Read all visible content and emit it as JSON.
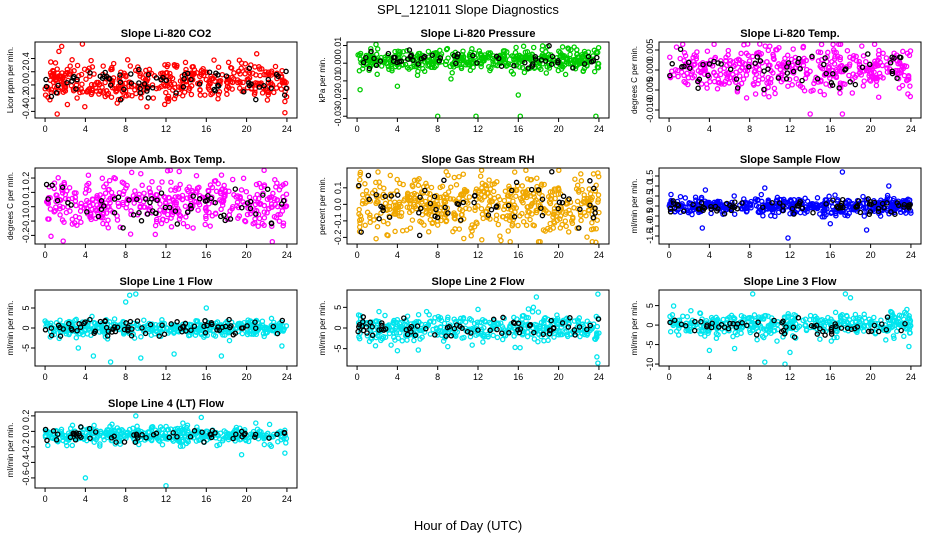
{
  "figure": {
    "title": "SPL_121011  Slope Diagnostics",
    "xlabel": "Hour of Day (UTC)"
  },
  "colors": {
    "red": "#ff0000",
    "green": "#00cc00",
    "magenta": "#ff00ff",
    "orange": "#f0a800",
    "blue": "#0000ff",
    "cyan": "#00e5ee",
    "reference": "#000000"
  },
  "chart_data": [
    {
      "type": "scatter",
      "title": "Slope Li-820 CO2",
      "xlabel": "",
      "ylabel": "Licor ppm per min.",
      "xlim": [
        -1,
        25
      ],
      "ylim": [
        -0.5,
        0.65
      ],
      "xticks": [
        0,
        4,
        8,
        12,
        16,
        20,
        24
      ],
      "yticks": [
        "-0.4",
        "-0.2",
        "0.0",
        "0.2",
        "0.4"
      ],
      "ytick_values": [
        -0.4,
        -0.2,
        0.0,
        0.2,
        0.4
      ],
      "color_key": "red",
      "center": 0.05,
      "spread": 0.15,
      "outliers": [
        [
          3.7,
          0.62
        ],
        [
          1.2,
          -0.44
        ],
        [
          23.8,
          -0.42
        ],
        [
          8.2,
          0.38
        ]
      ],
      "n_points": 420,
      "n_ref": 70,
      "seed": 11
    },
    {
      "type": "scatter",
      "title": "Slope Li-820 Pressure",
      "xlabel": "",
      "ylabel": "kPa per min.",
      "xlim": [
        -1,
        25
      ],
      "ylim": [
        -0.031,
        0.012
      ],
      "xticks": [
        0,
        4,
        8,
        12,
        16,
        20,
        24
      ],
      "yticks": [
        "-0.03",
        "-0.02",
        "-0.01",
        "0.00",
        "0.01"
      ],
      "ytick_values": [
        -0.03,
        -0.02,
        -0.01,
        0.0,
        0.01
      ],
      "color_key": "green",
      "center": 0.002,
      "spread": 0.003,
      "outliers": [
        [
          0.3,
          -0.015
        ],
        [
          4.0,
          -0.013
        ],
        [
          8.0,
          -0.03
        ],
        [
          11.8,
          -0.03
        ],
        [
          16.0,
          -0.018
        ],
        [
          16.2,
          -0.03
        ],
        [
          23.7,
          -0.03
        ],
        [
          21.0,
          0.008
        ],
        [
          19.0,
          0.005
        ]
      ],
      "n_points": 460,
      "n_ref": 55,
      "seed": 23
    },
    {
      "type": "scatter",
      "title": "Slope Li-820 Temp.",
      "xlabel": "",
      "ylabel": "degrees C per min.",
      "xlim": [
        -1,
        25
      ],
      "ylim": [
        -0.012,
        0.007
      ],
      "xticks": [
        0,
        4,
        8,
        12,
        16,
        20,
        24
      ],
      "yticks": [
        "-0.010",
        "-0.005",
        "0.000",
        "0.005"
      ],
      "ytick_values": [
        -0.01,
        -0.005,
        0.0,
        0.005
      ],
      "color_key": "magenta",
      "center": 0.0,
      "spread": 0.0028,
      "outliers": [
        [
          7.8,
          0.0065
        ],
        [
          9.0,
          0.0065
        ],
        [
          14.0,
          -0.011
        ],
        [
          23.7,
          -0.006
        ],
        [
          17.2,
          -0.011
        ]
      ],
      "n_points": 420,
      "n_ref": 60,
      "seed": 37
    },
    {
      "type": "scatter",
      "title": "Slope Amb. Box Temp.",
      "xlabel": "",
      "ylabel": "degrees C per min.",
      "xlim": [
        -1,
        25
      ],
      "ylim": [
        -0.26,
        0.27
      ],
      "xticks": [
        0,
        4,
        8,
        12,
        16,
        20,
        24
      ],
      "yticks": [
        "-0.2",
        "-0.1",
        "0.0",
        "0.1",
        "0.2"
      ],
      "ytick_values": [
        -0.2,
        -0.1,
        0.0,
        0.1,
        0.2
      ],
      "color_key": "magenta",
      "center": 0.02,
      "spread": 0.09,
      "outliers": [
        [
          1.8,
          -0.24
        ],
        [
          9.5,
          0.23
        ],
        [
          4.3,
          0.22
        ]
      ],
      "n_points": 420,
      "n_ref": 60,
      "seed": 41
    },
    {
      "type": "scatter",
      "title": "Slope Gas Stream RH",
      "xlabel": "",
      "ylabel": "percent per min.",
      "xlim": [
        -1,
        25
      ],
      "ylim": [
        -0.24,
        0.22
      ],
      "xticks": [
        0,
        4,
        8,
        12,
        16,
        20,
        24
      ],
      "yticks": [
        "-0.2",
        "-0.1",
        "0.0",
        "0.1"
      ],
      "ytick_values": [
        -0.2,
        -0.1,
        0.0,
        0.1
      ],
      "color_key": "orange",
      "center": 0.0,
      "spread": 0.09,
      "outliers": [
        [
          23.7,
          -0.23
        ],
        [
          23.9,
          0.19
        ],
        [
          0.3,
          0.18
        ]
      ],
      "n_points": 520,
      "n_ref": 60,
      "seed": 53
    },
    {
      "type": "scatter",
      "title": "Slope Sample Flow",
      "xlabel": "",
      "ylabel": "ml/min per min.",
      "xlim": [
        -1,
        25
      ],
      "ylim": [
        -1.9,
        1.9
      ],
      "xticks": [
        0,
        4,
        8,
        12,
        16,
        20,
        24
      ],
      "yticks": [
        "-1.5",
        "-1.0",
        "-0.5",
        "0.0",
        "0.5",
        "1.0",
        "1.5"
      ],
      "ytick_values": [
        -1.5,
        -1.0,
        -0.5,
        0.0,
        0.5,
        1.0,
        1.5
      ],
      "color_key": "blue",
      "center": 0.0,
      "spread": 0.22,
      "outliers": [
        [
          11.8,
          -1.6
        ],
        [
          17.2,
          1.7
        ],
        [
          3.3,
          -1.1
        ],
        [
          19.6,
          -1.2
        ],
        [
          9.5,
          0.9
        ],
        [
          21.8,
          1.0
        ],
        [
          3.6,
          0.8
        ]
      ],
      "n_points": 460,
      "n_ref": 80,
      "seed": 61
    },
    {
      "type": "scatter",
      "title": "Slope Line 1 Flow",
      "xlabel": "",
      "ylabel": "ml/min per min.",
      "xlim": [
        -1,
        25
      ],
      "ylim": [
        -9.5,
        9.5
      ],
      "xticks": [
        0,
        4,
        8,
        12,
        16,
        20,
        24
      ],
      "yticks": [
        "-5",
        "0",
        "5"
      ],
      "ytick_values": [
        -5,
        0,
        5
      ],
      "color_key": "cyan",
      "center": 0.0,
      "spread": 1.0,
      "outliers": [
        [
          8.4,
          8.2
        ],
        [
          9.0,
          8.5
        ],
        [
          3.3,
          -5.0
        ],
        [
          4.8,
          -7.0
        ],
        [
          6.5,
          -8.5
        ],
        [
          9.5,
          -7.5
        ],
        [
          12.8,
          -6.5
        ],
        [
          17.5,
          -7.0
        ],
        [
          23.5,
          -4.5
        ],
        [
          8.0,
          6.5
        ],
        [
          16.0,
          5.0
        ]
      ],
      "n_points": 420,
      "n_ref": 80,
      "seed": 71
    },
    {
      "type": "scatter",
      "title": "Slope Line 2 Flow",
      "xlabel": "",
      "ylabel": "ml/min per min.",
      "xlim": [
        -1,
        25
      ],
      "ylim": [
        -9.2,
        9.2
      ],
      "xticks": [
        0,
        4,
        8,
        12,
        16,
        20,
        24
      ],
      "yticks": [
        "-5",
        "0",
        "5"
      ],
      "ytick_values": [
        -5,
        0,
        5
      ],
      "color_key": "cyan",
      "center": 0.0,
      "spread": 1.6,
      "outliers": [
        [
          23.9,
          8.2
        ],
        [
          23.8,
          -7.0
        ],
        [
          23.9,
          -8.5
        ],
        [
          4.0,
          -5.5
        ],
        [
          17.8,
          7.5
        ],
        [
          17.5,
          5.0
        ],
        [
          9.0,
          -4.5
        ],
        [
          12.0,
          4.5
        ]
      ],
      "n_points": 420,
      "n_ref": 70,
      "seed": 83
    },
    {
      "type": "scatter",
      "title": "Slope Line 3 Flow",
      "xlabel": "",
      "ylabel": "ml/min per min.",
      "xlim": [
        -1,
        25
      ],
      "ylim": [
        -10.5,
        9
      ],
      "xticks": [
        0,
        4,
        8,
        12,
        16,
        20,
        24
      ],
      "yticks": [
        "-10",
        "-5",
        "0",
        "5"
      ],
      "ytick_values": [
        -10,
        -5,
        0,
        5
      ],
      "color_key": "cyan",
      "center": 0.0,
      "spread": 1.6,
      "outliers": [
        [
          8.3,
          8.0
        ],
        [
          17.5,
          8.0
        ],
        [
          18.0,
          7.0
        ],
        [
          11.5,
          -10.0
        ],
        [
          12.0,
          -7.0
        ],
        [
          4.0,
          -6.5
        ],
        [
          23.8,
          -5.5
        ],
        [
          6.5,
          -6.0
        ],
        [
          9.5,
          -9.5
        ],
        [
          23.6,
          4.0
        ]
      ],
      "n_points": 420,
      "n_ref": 60,
      "seed": 97
    },
    {
      "type": "scatter",
      "title": "Slope Line 4 (LT) Flow",
      "xlabel": "",
      "ylabel": "ml/min per min.",
      "xlim": [
        -1,
        25
      ],
      "ylim": [
        -0.73,
        0.25
      ],
      "xticks": [
        0,
        4,
        8,
        12,
        16,
        20,
        24
      ],
      "yticks": [
        "-0.6",
        "-0.4",
        "-0.2",
        "0.0",
        "0.2"
      ],
      "ytick_values": [
        -0.6,
        -0.4,
        -0.2,
        0.0,
        0.2
      ],
      "color_key": "cyan",
      "center": -0.05,
      "spread": 0.055,
      "outliers": [
        [
          4.0,
          -0.6
        ],
        [
          12.0,
          -0.7
        ],
        [
          19.5,
          -0.3
        ],
        [
          9.0,
          0.2
        ],
        [
          15.5,
          0.18
        ],
        [
          23.8,
          -0.28
        ]
      ],
      "n_points": 420,
      "n_ref": 55,
      "seed": 101
    }
  ]
}
